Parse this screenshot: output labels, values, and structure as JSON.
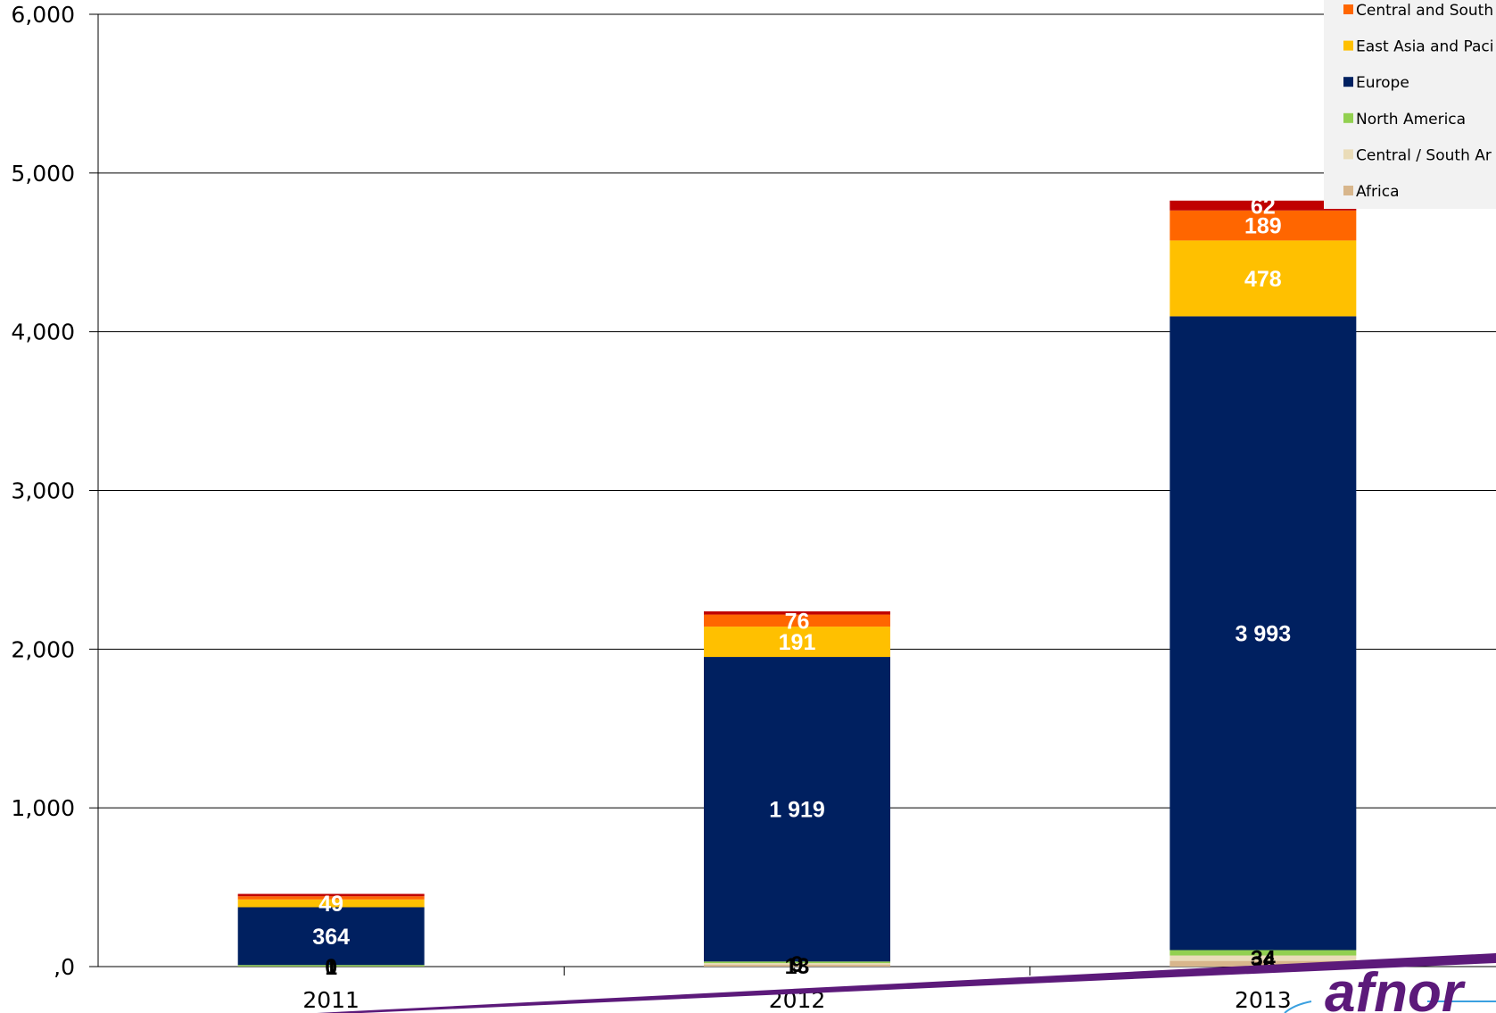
{
  "chart_data": {
    "type": "bar",
    "stacked": true,
    "title": "",
    "xlabel": "",
    "ylabel": "",
    "ylim": [
      0,
      6000
    ],
    "yticks": [
      ",0",
      "1,000",
      "2,000",
      "3,000",
      "4,000",
      "5,000",
      "6,000"
    ],
    "ytick_values": [
      0,
      1000,
      2000,
      3000,
      4000,
      5000,
      6000
    ],
    "grid": true,
    "legend_position": "top-right",
    "categories": [
      "2011",
      "2012",
      "2013"
    ],
    "series": [
      {
        "name": "Africa",
        "color": "#d8b68c",
        "values": [
          0,
          13,
          36
        ],
        "labels": [
          "0",
          "13",
          "36"
        ],
        "label_color": "#000000"
      },
      {
        "name": "Central / South Ar",
        "color": "#eadcb8",
        "values": [
          1,
          9,
          34
        ],
        "labels": [
          "1",
          "9",
          "34"
        ],
        "label_color": "#000000"
      },
      {
        "name": "North America",
        "color": "#92d050",
        "values": [
          9,
          10,
          34
        ],
        "labels": [],
        "label_color": "#ffffff"
      },
      {
        "name": "Europe",
        "color": "#002060",
        "values": [
          364,
          1919,
          3993
        ],
        "labels": [
          "364",
          "1 919",
          "3 993"
        ],
        "label_color": "#ffffff"
      },
      {
        "name": "East Asia and Paci",
        "color": "#ffc000",
        "values": [
          49,
          191,
          478
        ],
        "labels": [
          "49",
          "191",
          "478"
        ],
        "label_color": "#ffffff"
      },
      {
        "name": "Central and South",
        "color": "#ff6600",
        "values": [
          20,
          76,
          189
        ],
        "labels": [
          "",
          "76",
          "189"
        ],
        "label_color": "#ffffff"
      },
      {
        "name": "",
        "color": "#c00000",
        "values": [
          15,
          20,
          62
        ],
        "labels": [
          "",
          "",
          "62"
        ],
        "label_color": "#ffffff"
      }
    ],
    "legend_order": [
      5,
      4,
      3,
      2,
      1,
      0
    ]
  },
  "logo": {
    "text": "afnor",
    "color": "#5c1a7a"
  }
}
